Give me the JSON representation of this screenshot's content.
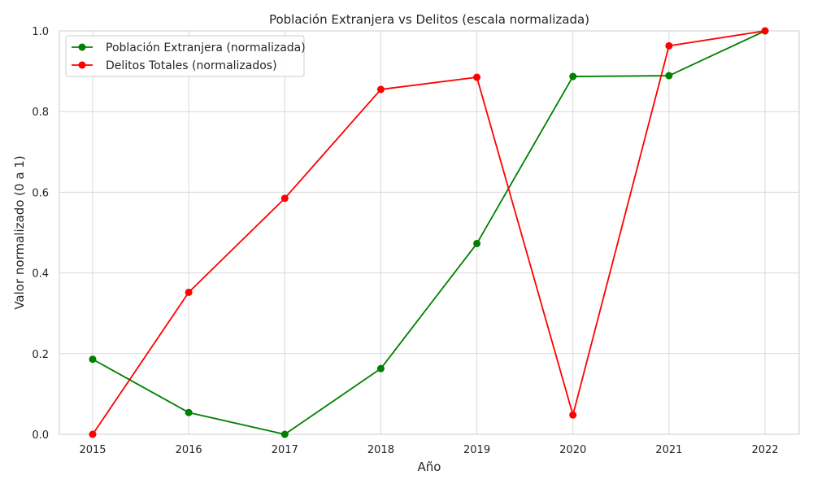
{
  "chart_data": {
    "type": "line",
    "title": "Población Extranjera vs Delitos (escala normalizada)",
    "xlabel": "Año",
    "ylabel": "Valor normalizado (0 a 1)",
    "x": [
      "2015",
      "2016",
      "2017",
      "2018",
      "2019",
      "2020",
      "2021",
      "2022"
    ],
    "yticks": [
      "0.0",
      "0.2",
      "0.4",
      "0.6",
      "0.8",
      "1.0"
    ],
    "ylim": [
      0,
      1
    ],
    "grid": true,
    "legend_position": "top-left",
    "series": [
      {
        "name": "Población Extranjera (normalizada)",
        "color": "#008000",
        "values": [
          0.186,
          0.054,
          0.0,
          0.163,
          0.473,
          0.887,
          0.889,
          1.0
        ]
      },
      {
        "name": "Delitos Totales (normalizados)",
        "color": "#ff0000",
        "values": [
          0.0,
          0.352,
          0.585,
          0.855,
          0.885,
          0.048,
          0.963,
          1.0
        ]
      }
    ]
  }
}
